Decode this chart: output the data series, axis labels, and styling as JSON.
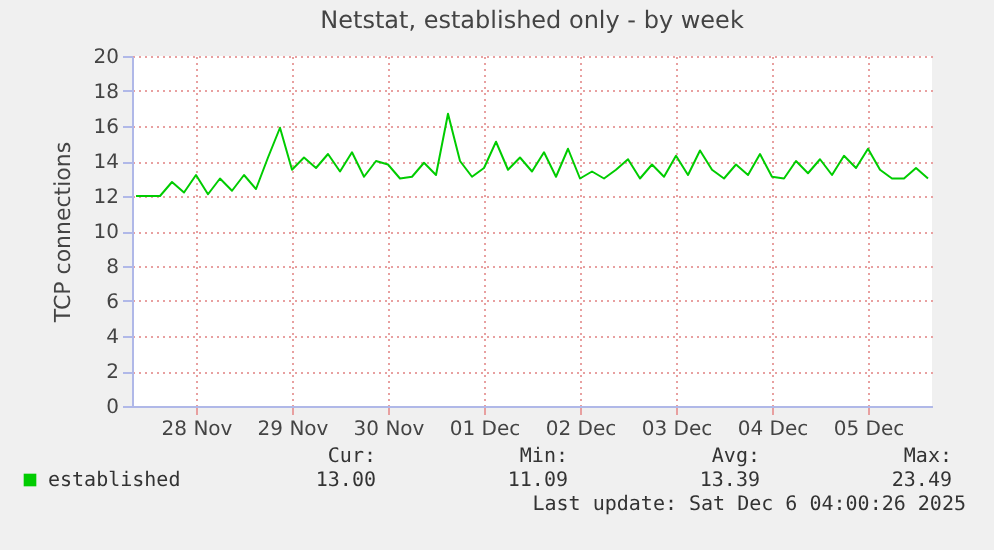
{
  "chart_data": {
    "type": "line",
    "title": "Netstat, established only - by week",
    "ylabel": "TCP connections",
    "x": [
      "2025-11-27T21:00",
      "2025-11-28T00:00",
      "2025-11-28T03:00",
      "2025-11-28T06:00",
      "2025-11-28T09:00",
      "2025-11-28T12:00",
      "2025-11-28T15:00",
      "2025-11-28T18:00",
      "2025-11-28T21:00",
      "2025-11-29T00:00",
      "2025-11-29T03:00",
      "2025-11-29T06:00",
      "2025-11-29T09:00",
      "2025-11-29T12:00",
      "2025-11-29T15:00",
      "2025-11-29T18:00",
      "2025-11-29T21:00",
      "2025-11-30T00:00",
      "2025-11-30T03:00",
      "2025-11-30T06:00",
      "2025-11-30T09:00",
      "2025-11-30T12:00",
      "2025-11-30T15:00",
      "2025-11-30T18:00",
      "2025-11-30T21:00",
      "2025-12-01T00:00",
      "2025-12-01T03:00",
      "2025-12-01T06:00",
      "2025-12-01T09:00",
      "2025-12-01T12:00",
      "2025-12-01T15:00",
      "2025-12-01T18:00",
      "2025-12-01T21:00",
      "2025-12-02T00:00",
      "2025-12-02T03:00",
      "2025-12-02T06:00",
      "2025-12-02T09:00",
      "2025-12-02T12:00",
      "2025-12-02T15:00",
      "2025-12-02T18:00",
      "2025-12-02T21:00",
      "2025-12-03T00:00",
      "2025-12-03T03:00",
      "2025-12-03T06:00",
      "2025-12-03T09:00",
      "2025-12-03T12:00",
      "2025-12-03T15:00",
      "2025-12-03T18:00",
      "2025-12-03T21:00",
      "2025-12-04T00:00",
      "2025-12-04T03:00",
      "2025-12-04T06:00",
      "2025-12-04T09:00",
      "2025-12-04T12:00",
      "2025-12-04T15:00",
      "2025-12-04T18:00",
      "2025-12-04T21:00",
      "2025-12-05T00:00",
      "2025-12-05T03:00",
      "2025-12-05T06:00",
      "2025-12-05T09:00",
      "2025-12-05T12:00",
      "2025-12-05T15:00",
      "2025-12-05T18:00",
      "2025-12-05T21:00",
      "2025-12-06T00:00",
      "2025-12-06T03:00"
    ],
    "series": [
      {
        "name": "established",
        "color": "#00cc00",
        "values": [
          12.0,
          12.0,
          12.0,
          12.8,
          12.2,
          13.2,
          12.1,
          13.0,
          12.3,
          13.2,
          12.4,
          14.2,
          15.9,
          13.5,
          14.2,
          13.6,
          14.4,
          13.4,
          14.5,
          13.1,
          14.0,
          13.8,
          13.0,
          13.1,
          13.9,
          13.2,
          16.7,
          14.0,
          13.1,
          13.6,
          15.1,
          13.5,
          14.2,
          13.4,
          14.5,
          13.1,
          14.7,
          13.0,
          13.4,
          13.0,
          13.5,
          14.1,
          13.0,
          13.8,
          13.1,
          14.3,
          13.2,
          14.6,
          13.5,
          13.0,
          13.8,
          13.2,
          14.4,
          13.1,
          13.0,
          14.0,
          13.3,
          14.1,
          13.2,
          14.3,
          13.6,
          14.7,
          13.5,
          13.0,
          13.0,
          13.6,
          13.0
        ]
      }
    ],
    "xlim": [
      "2025-11-27T20:00",
      "2025-12-06T04:00"
    ],
    "xticks": [
      {
        "value": "2025-11-28T12:00",
        "label": "28 Nov"
      },
      {
        "value": "2025-11-29T12:00",
        "label": "29 Nov"
      },
      {
        "value": "2025-11-30T12:00",
        "label": "30 Nov"
      },
      {
        "value": "2025-12-01T12:00",
        "label": "01 Dec"
      },
      {
        "value": "2025-12-02T12:00",
        "label": "02 Dec"
      },
      {
        "value": "2025-12-03T12:00",
        "label": "03 Dec"
      },
      {
        "value": "2025-12-04T12:00",
        "label": "04 Dec"
      },
      {
        "value": "2025-12-05T12:00",
        "label": "05 Dec"
      }
    ],
    "ylim": [
      0,
      20
    ],
    "yticks": [
      0,
      2,
      4,
      6,
      8,
      10,
      12,
      14,
      16,
      18,
      20
    ],
    "grid": true,
    "legend": "bottom",
    "annotations": [
      "Cur:",
      "Min:",
      "Avg:",
      "Max:",
      "13.00",
      "11.09",
      "13.39",
      "23.49",
      "Last update: Sat Dec  6 04:00:26 2025"
    ]
  }
}
